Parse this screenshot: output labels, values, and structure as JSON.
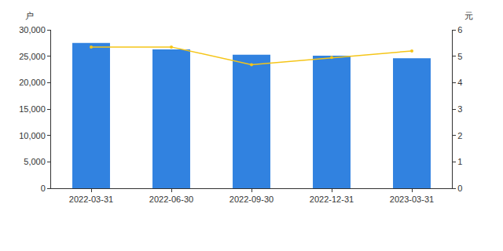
{
  "chart_data": {
    "type": "bar",
    "categories": [
      "2022-03-31",
      "2022-06-30",
      "2022-09-30",
      "2022-12-31",
      "2023-03-31"
    ],
    "ylabel": "户",
    "y2label": "元",
    "series": [
      {
        "type": "bar",
        "color": "#3182e0",
        "values": [
          27500,
          26300,
          25300,
          25100,
          24600
        ]
      },
      {
        "type": "line",
        "axis": "y2",
        "color": "#f5c518",
        "marker": "circle",
        "values": [
          5.35,
          5.35,
          4.68,
          4.95,
          5.2
        ]
      }
    ],
    "ylim": [
      0,
      30000
    ],
    "yticks": [
      0,
      {
        "value": 5000,
        "label": "5,000"
      },
      {
        "value": 10000,
        "label": "10,000"
      },
      {
        "value": 15000,
        "label": "15,000"
      },
      {
        "value": 20000,
        "label": "20,000"
      },
      {
        "value": 25000,
        "label": "25,000"
      },
      {
        "value": 30000,
        "label": "30,000"
      }
    ],
    "y2lim": [
      0,
      6
    ],
    "y2ticks": [
      0,
      1,
      2,
      3,
      4,
      5,
      6
    ],
    "grid": false
  }
}
